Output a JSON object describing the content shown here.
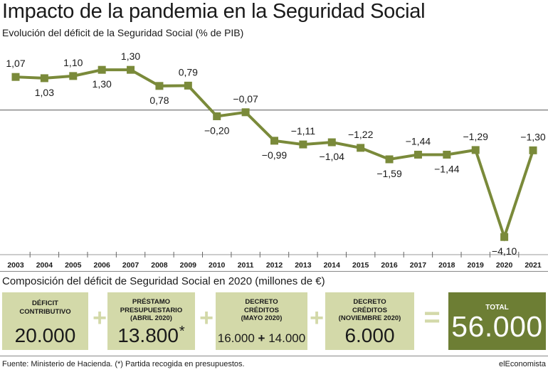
{
  "title": "Impacto de la pandemia en la Seguridad Social",
  "subtitle": "Evolución del déficit de la Seguridad Social (% de PIB)",
  "chart_data": {
    "type": "line",
    "x": [
      "2003",
      "2004",
      "2005",
      "2006",
      "2007",
      "2008",
      "2009",
      "2010",
      "2011",
      "2012",
      "2013",
      "2014",
      "2015",
      "2016",
      "2017",
      "2018",
      "2019",
      "2020",
      "2021"
    ],
    "series": [
      {
        "values": [
          1.07,
          1.03,
          1.1,
          1.3,
          1.3,
          0.78,
          0.79,
          -0.2,
          -0.07,
          -0.99,
          -1.11,
          -1.04,
          -1.22,
          -1.59,
          -1.44,
          -1.44,
          -1.29,
          -4.1,
          -1.3
        ],
        "labels": [
          "1,07",
          "1,03",
          "1,10",
          "1,30",
          "1,30",
          "0,78",
          "0,79",
          "−0,20",
          "−0,07",
          "−0,99",
          "−1,11",
          "−1,04",
          "−1,22",
          "−1,59",
          "−1,44",
          "−1,44",
          "−1,29",
          "−4,10",
          "−1,30"
        ]
      }
    ],
    "ylim": [
      -4.6,
      2.2
    ],
    "color": "#7a8a3a",
    "zero_line": true
  },
  "section2_title": "Composición del déficit de Seguridad Social en 2020 (millones de €)",
  "boxes": [
    {
      "label": "DÉFICIT\nCONTRIBUTIVO",
      "value": "20.000"
    },
    {
      "label": "PRÉSTAMO\nPRESUPUESTARIO\n(ABRIL 2020)",
      "value": "13.800",
      "mark": "*"
    },
    {
      "label": "DECRETO\nCRÉDITOS\n(MAYO 2020)",
      "value_a": "16.000",
      "value_plus": "+",
      "value_b": "14.000"
    },
    {
      "label": "DECRETO\nCRÉDITOS\n(NOVIEMBRE 2020)",
      "value": "6.000"
    }
  ],
  "operators": [
    "+",
    "+",
    "+",
    "="
  ],
  "total": {
    "label": "TOTAL",
    "value": "56.000"
  },
  "footer": {
    "source": "Fuente: Ministerio de Hacienda. (*) Partida recogida en presupuestos.",
    "brand": "elEconomista"
  },
  "colors": {
    "box": "#d3d9a9",
    "total": "#6d7e34",
    "line": "#7a8a3a"
  }
}
